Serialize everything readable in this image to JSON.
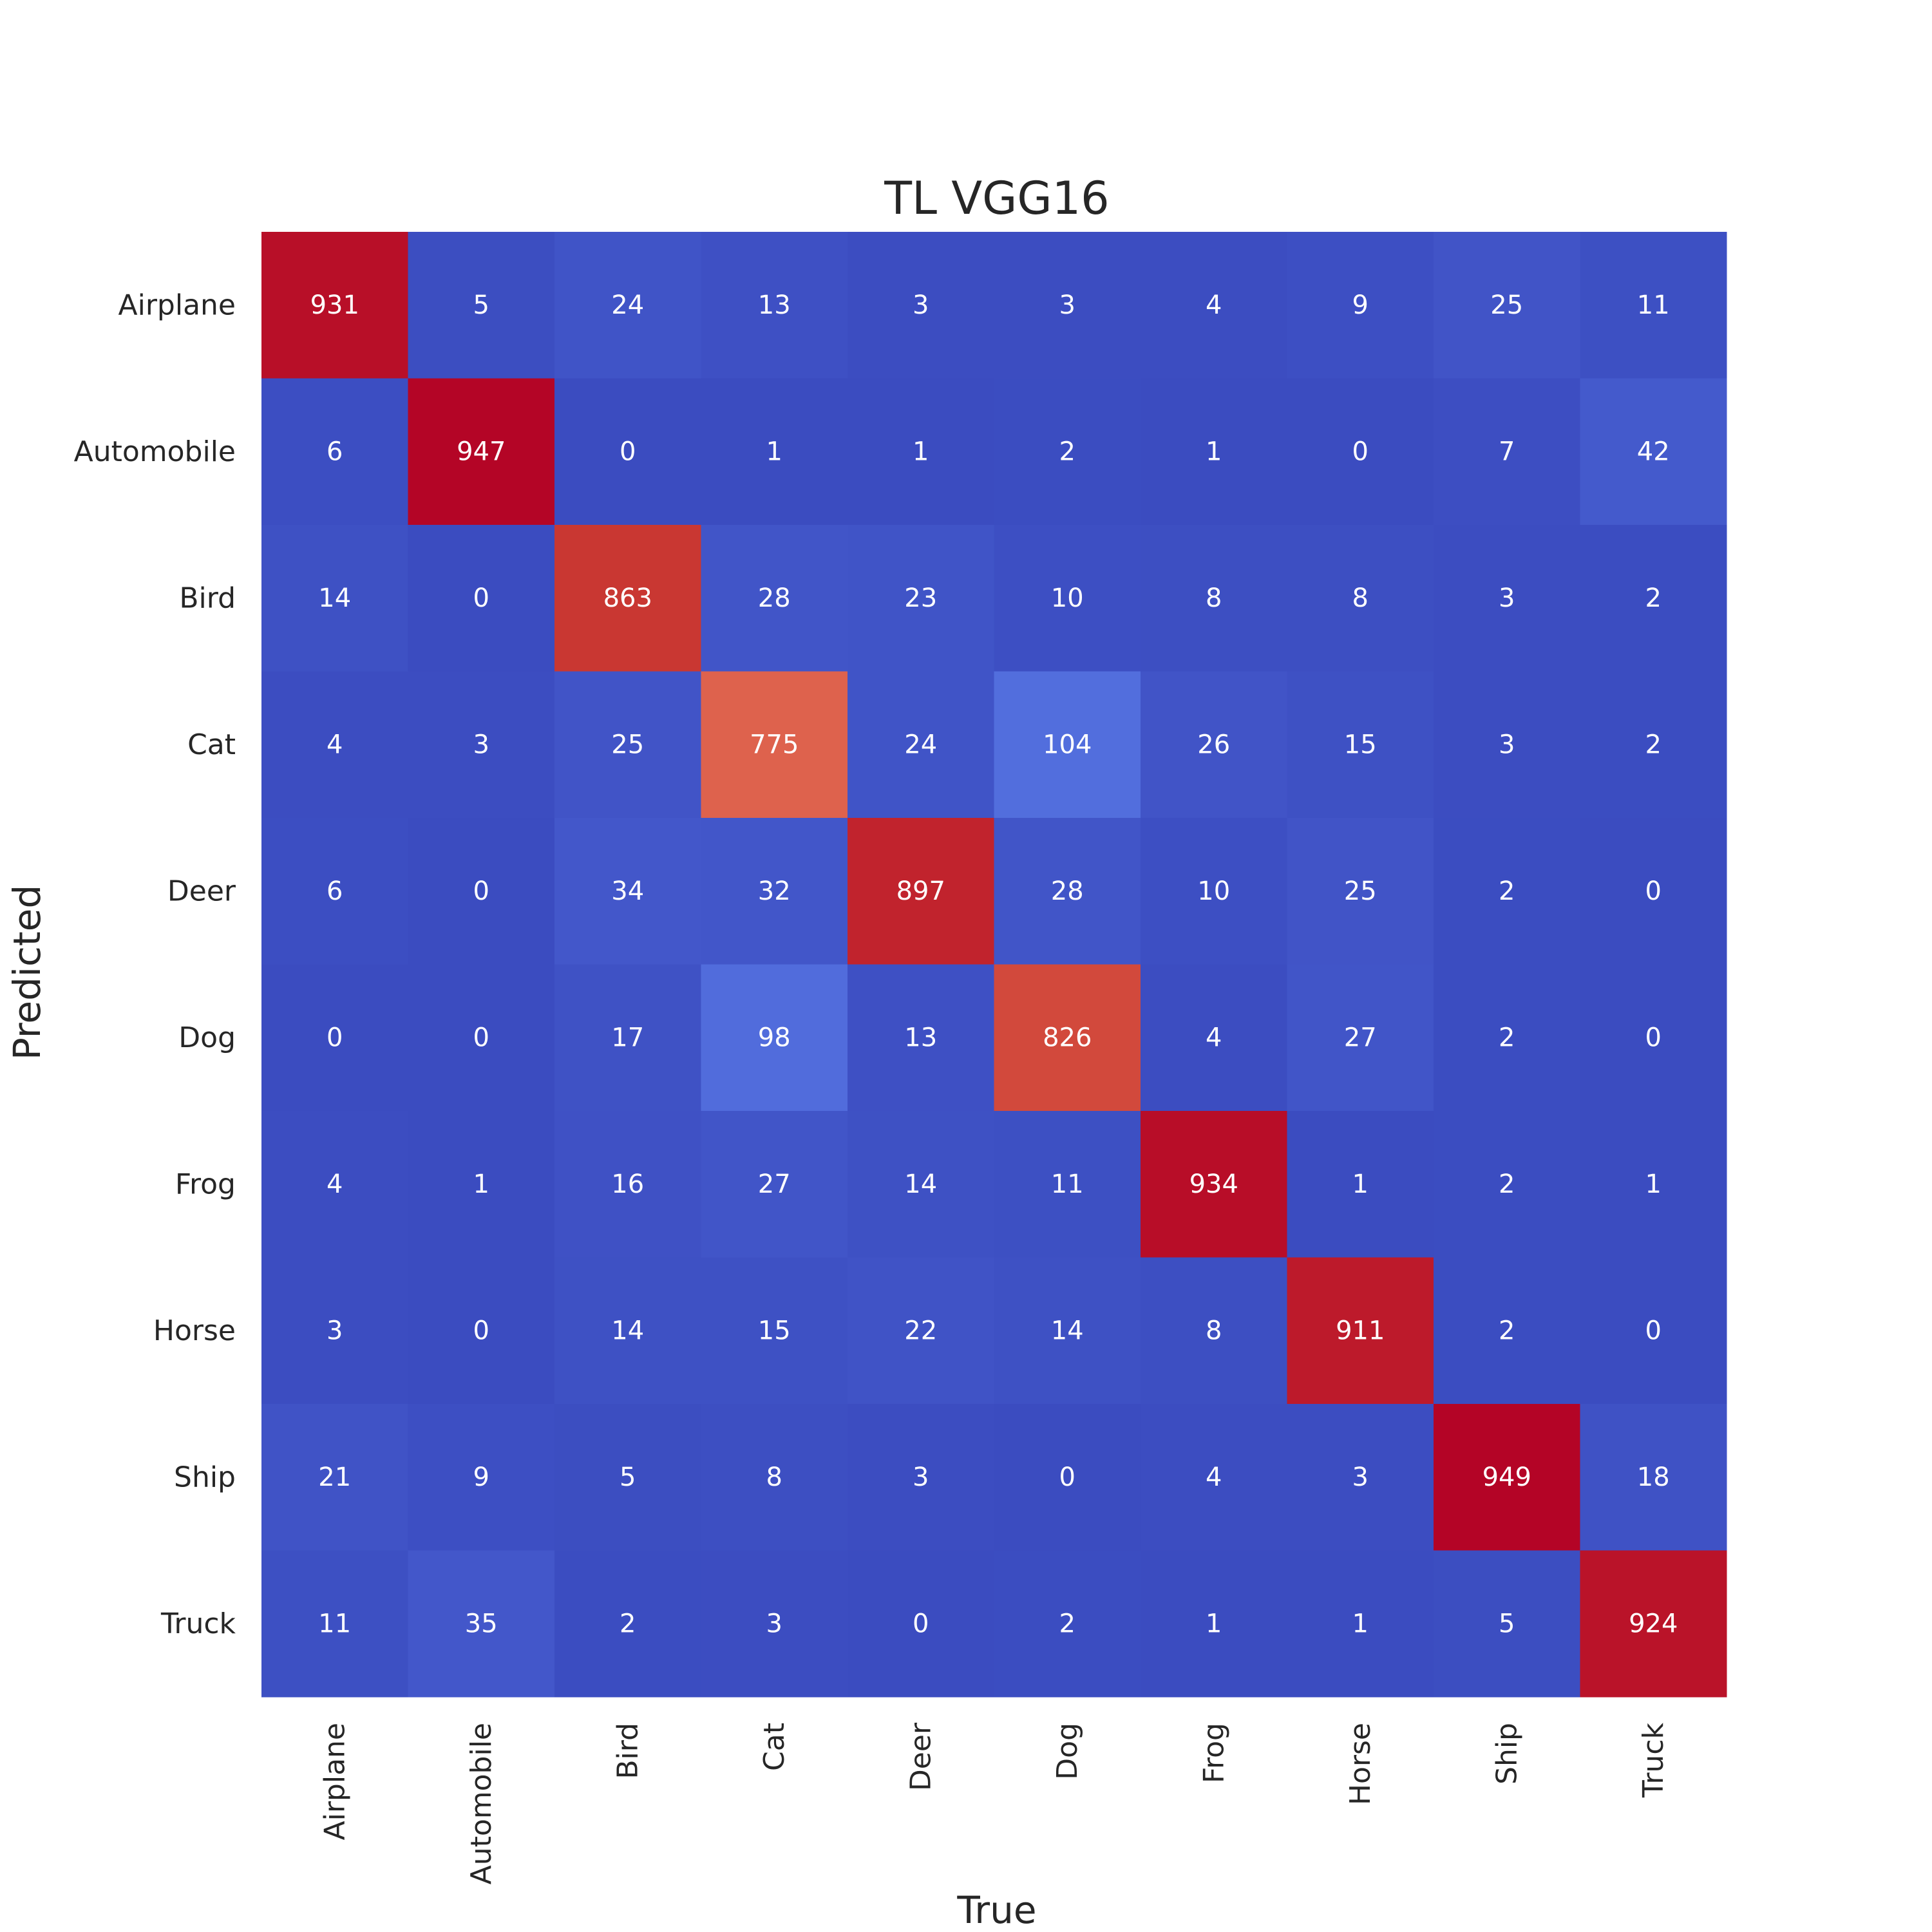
{
  "chart_data": {
    "type": "heatmap",
    "title": "TL VGG16",
    "xlabel": "True",
    "ylabel": "Predicted",
    "x_categories": [
      "Airplane",
      "Automobile",
      "Bird",
      "Cat",
      "Deer",
      "Dog",
      "Frog",
      "Horse",
      "Ship",
      "Truck"
    ],
    "y_categories": [
      "Airplane",
      "Automobile",
      "Bird",
      "Cat",
      "Deer",
      "Dog",
      "Frog",
      "Horse",
      "Ship",
      "Truck"
    ],
    "values": [
      [
        931,
        5,
        24,
        13,
        3,
        3,
        4,
        9,
        25,
        11
      ],
      [
        6,
        947,
        0,
        1,
        1,
        2,
        1,
        0,
        7,
        42
      ],
      [
        14,
        0,
        863,
        28,
        23,
        10,
        8,
        8,
        3,
        2
      ],
      [
        4,
        3,
        25,
        775,
        24,
        104,
        26,
        15,
        3,
        2
      ],
      [
        6,
        0,
        34,
        32,
        897,
        28,
        10,
        25,
        2,
        0
      ],
      [
        0,
        0,
        17,
        98,
        13,
        826,
        4,
        27,
        2,
        0
      ],
      [
        4,
        1,
        16,
        27,
        14,
        11,
        934,
        1,
        2,
        1
      ],
      [
        3,
        0,
        14,
        15,
        22,
        14,
        8,
        911,
        2,
        0
      ],
      [
        21,
        9,
        5,
        8,
        3,
        0,
        4,
        3,
        949,
        18
      ],
      [
        11,
        35,
        2,
        3,
        0,
        2,
        1,
        1,
        5,
        924
      ]
    ],
    "colormap": "coolwarm",
    "value_range": [
      0,
      949
    ],
    "colorbar": false,
    "grid": false
  }
}
